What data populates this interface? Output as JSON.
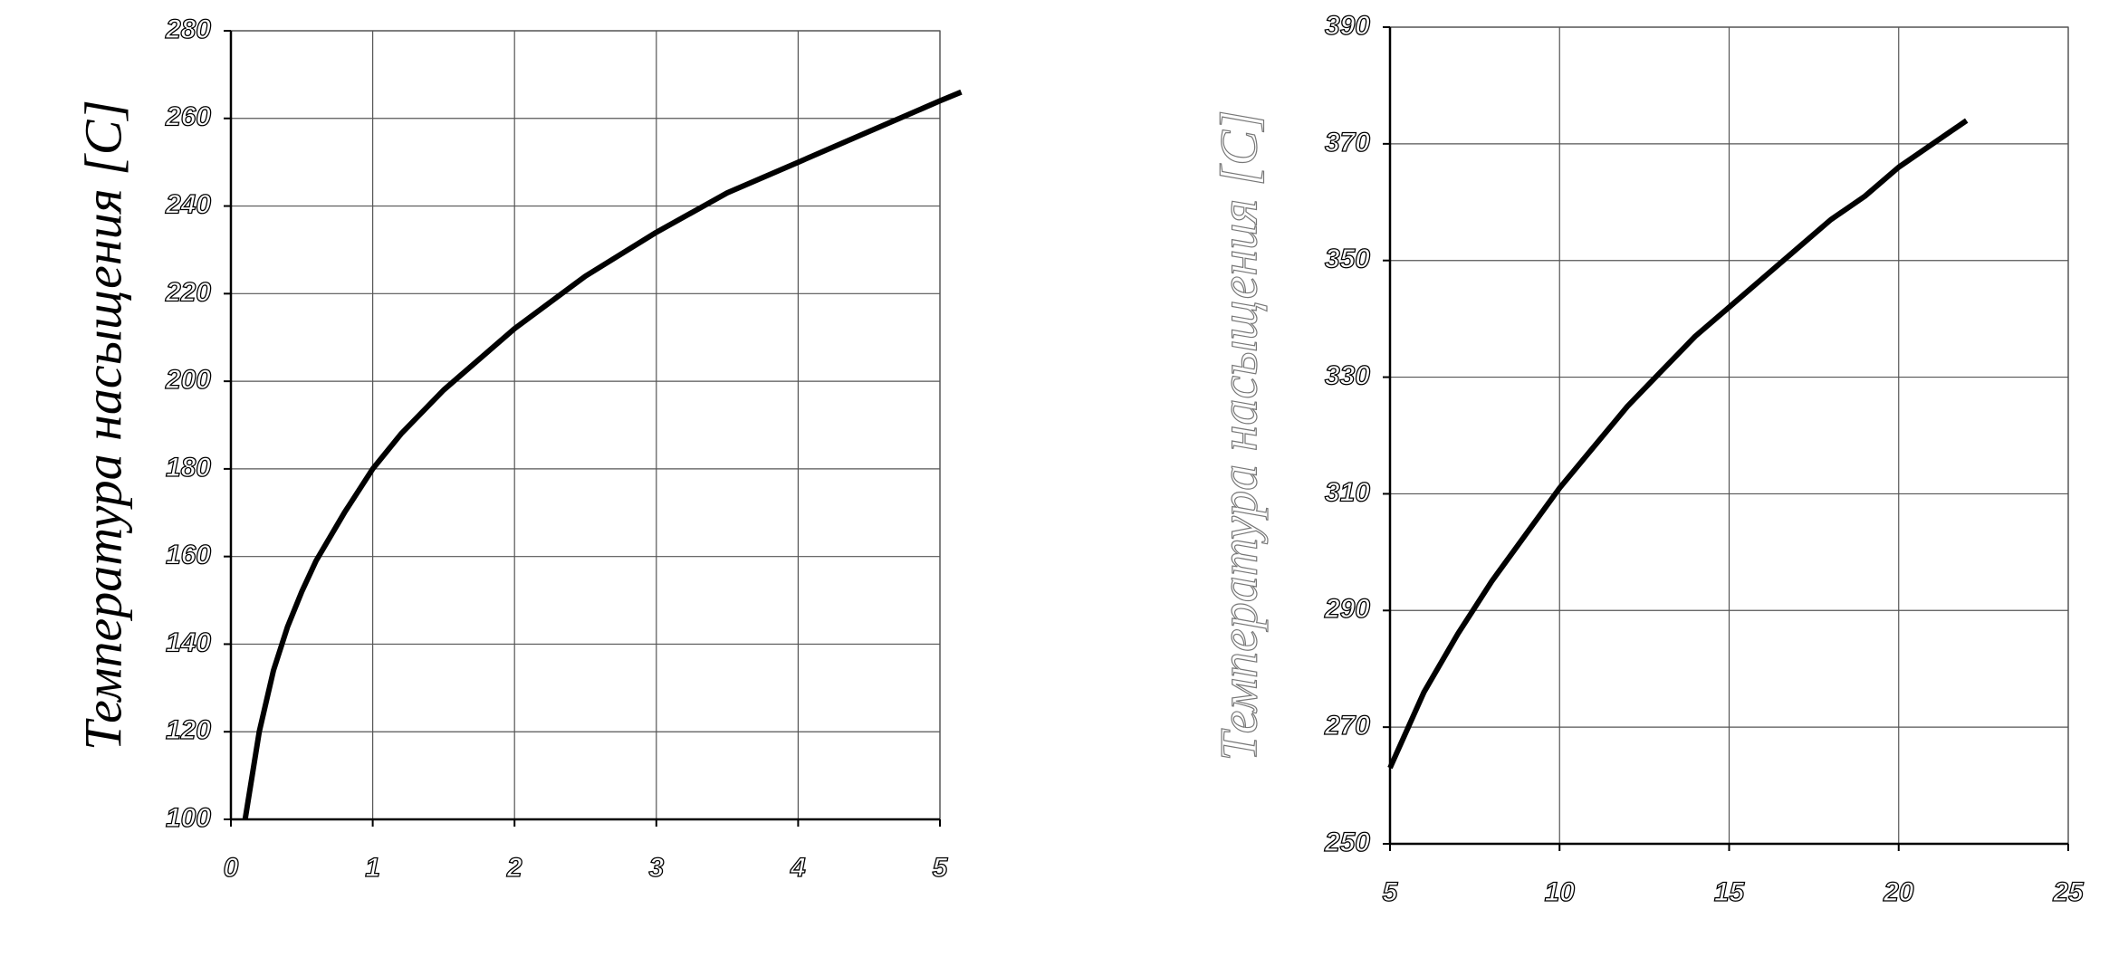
{
  "chart_data": [
    {
      "type": "line",
      "y_label": "Температура насыщения [C]",
      "x": [
        0.1,
        0.2,
        0.3,
        0.4,
        0.5,
        0.6,
        0.8,
        1.0,
        1.2,
        1.5,
        2.0,
        2.5,
        3.0,
        3.5,
        4.0,
        4.5,
        5.0,
        5.15
      ],
      "series": [
        {
          "color": "#000000",
          "values": [
            100,
            120,
            134,
            144,
            152,
            159,
            170,
            180,
            188,
            198,
            212,
            224,
            234,
            243,
            250,
            257,
            264,
            266
          ]
        }
      ],
      "xlim": [
        0,
        5
      ],
      "xticks": [
        0,
        1,
        2,
        3,
        4,
        5
      ],
      "ylim": [
        100,
        280
      ],
      "yticks": [
        100,
        120,
        140,
        160,
        180,
        200,
        220,
        240,
        260,
        280
      ],
      "grid": true
    },
    {
      "type": "line",
      "y_label": "Температура насыщения [C]",
      "x": [
        5,
        6,
        7,
        8,
        9,
        10,
        11,
        12,
        13,
        14,
        15,
        16,
        17,
        18,
        19,
        20,
        21,
        22
      ],
      "series": [
        {
          "color": "#000000",
          "values": [
            263,
            276,
            286,
            295,
            303,
            311,
            318,
            325,
            331,
            337,
            342,
            347,
            352,
            357,
            361,
            366,
            370,
            374
          ]
        }
      ],
      "xlim": [
        5,
        25
      ],
      "xticks": [
        5,
        10,
        15,
        20,
        25
      ],
      "ylim": [
        250,
        390
      ],
      "yticks": [
        250,
        270,
        290,
        310,
        330,
        350,
        370,
        390
      ],
      "grid": true
    }
  ]
}
